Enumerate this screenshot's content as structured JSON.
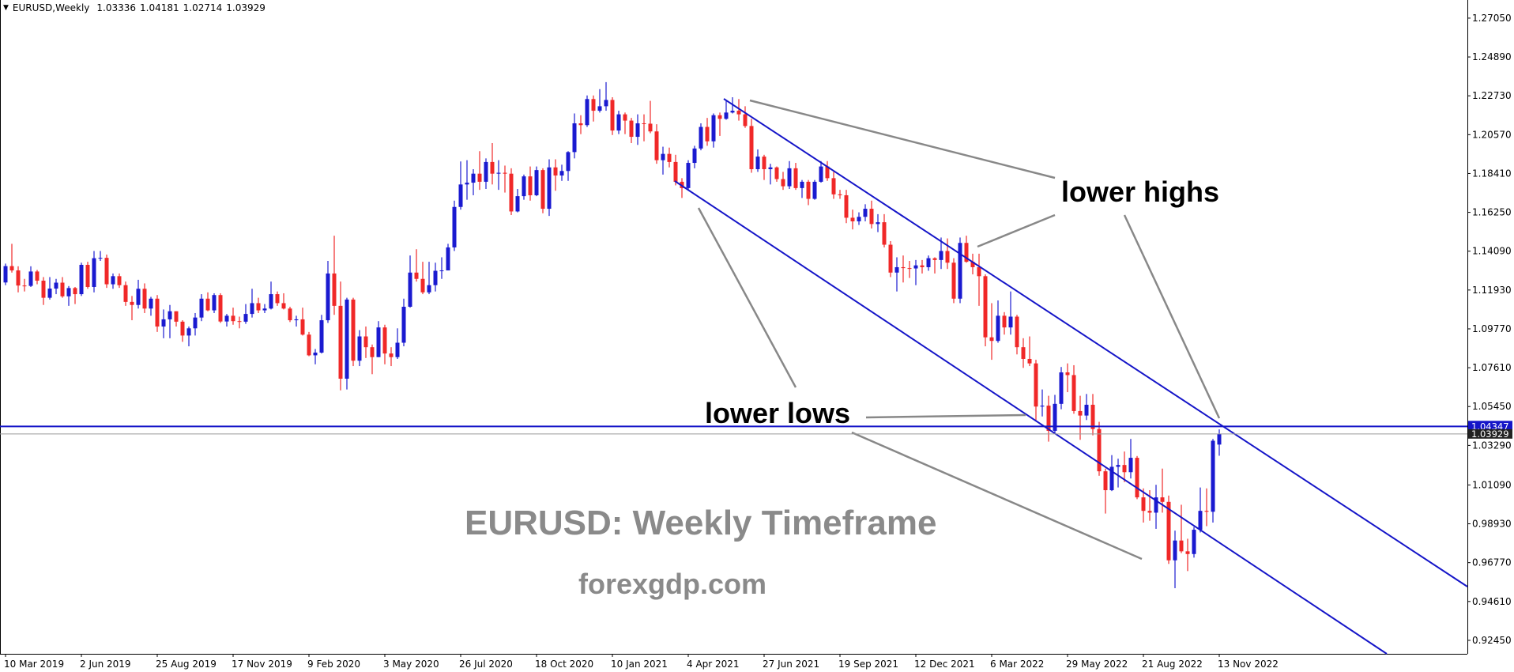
{
  "chart_data": {
    "type": "candlestick",
    "symbol": "EURUSD,Weekly",
    "up_color": "#1a1ad0",
    "down_color": "#f02828",
    "level": 1.04347,
    "level_color": "#1515c8",
    "annotations": [
      "lower highs",
      "lower lows",
      "EURUSD: Weekly Timeframe",
      "forexgdp.com"
    ],
    "ylim": [
      0.917,
      1.2797
    ],
    "yticks": [
      {
        "value": 1.2705,
        "label": "1.27050"
      },
      {
        "value": 1.2489,
        "label": "1.24890"
      },
      {
        "value": 1.2273,
        "label": "1.22730"
      },
      {
        "value": 1.2057,
        "label": "1.20570"
      },
      {
        "value": 1.1841,
        "label": "1.18410"
      },
      {
        "value": 1.1625,
        "label": "1.16250"
      },
      {
        "value": 1.1409,
        "label": "1.14090"
      },
      {
        "value": 1.1193,
        "label": "1.11930"
      },
      {
        "value": 1.0977,
        "label": "1.09770"
      },
      {
        "value": 1.0761,
        "label": "1.07610"
      },
      {
        "value": 1.0545,
        "label": "1.05450"
      },
      {
        "value": 1.0329,
        "label": "1.03290"
      },
      {
        "value": 1.0109,
        "label": "1.01090"
      },
      {
        "value": 0.9893,
        "label": "0.98930"
      },
      {
        "value": 0.9677,
        "label": "0.96770"
      },
      {
        "value": 0.9461,
        "label": "0.94610"
      },
      {
        "value": 0.9245,
        "label": "0.92450"
      }
    ],
    "categories": [
      "10 Mar 2019",
      null,
      null,
      null,
      null,
      null,
      null,
      null,
      null,
      null,
      null,
      null,
      "2 Jun 2019",
      null,
      null,
      null,
      null,
      null,
      null,
      null,
      null,
      null,
      null,
      null,
      "25 Aug 2019",
      null,
      null,
      null,
      null,
      null,
      null,
      null,
      null,
      null,
      null,
      null,
      "17 Nov 2019",
      null,
      null,
      null,
      null,
      null,
      null,
      null,
      null,
      null,
      null,
      null,
      "9 Feb 2020",
      null,
      null,
      null,
      null,
      null,
      null,
      null,
      null,
      null,
      null,
      null,
      "3 May 2020",
      null,
      null,
      null,
      null,
      null,
      null,
      null,
      null,
      null,
      null,
      null,
      "26 Jul 2020",
      null,
      null,
      null,
      null,
      null,
      null,
      null,
      null,
      null,
      null,
      null,
      "18 Oct 2020",
      null,
      null,
      null,
      null,
      null,
      null,
      null,
      null,
      null,
      null,
      null,
      "10 Jan 2021",
      null,
      null,
      null,
      null,
      null,
      null,
      null,
      null,
      null,
      null,
      null,
      "4 Apr 2021",
      null,
      null,
      null,
      null,
      null,
      null,
      null,
      null,
      null,
      null,
      null,
      "27 Jun 2021",
      null,
      null,
      null,
      null,
      null,
      null,
      null,
      null,
      null,
      null,
      null,
      "19 Sep 2021",
      null,
      null,
      null,
      null,
      null,
      null,
      null,
      null,
      null,
      null,
      null,
      "12 Dec 2021",
      null,
      null,
      null,
      null,
      null,
      null,
      null,
      null,
      null,
      null,
      null,
      "6 Mar 2022",
      null,
      null,
      null,
      null,
      null,
      null,
      null,
      null,
      null,
      null,
      null,
      "29 May 2022",
      null,
      null,
      null,
      null,
      null,
      null,
      null,
      null,
      null,
      null,
      null,
      "21 Aug 2022",
      null,
      null,
      null,
      null,
      null,
      null,
      null,
      null,
      null,
      null,
      null,
      "13 Nov 2022"
    ],
    "candles": [
      [
        1.1235,
        1.134,
        1.122,
        1.1326
      ],
      [
        1.1326,
        1.145,
        1.129,
        1.1302
      ],
      [
        1.1302,
        1.1325,
        1.118,
        1.1218
      ],
      [
        1.1218,
        1.1255,
        1.1185,
        1.1216
      ],
      [
        1.1216,
        1.1325,
        1.121,
        1.1296
      ],
      [
        1.1296,
        1.1305,
        1.1225,
        1.1245
      ],
      [
        1.1245,
        1.1265,
        1.111,
        1.115
      ],
      [
        1.115,
        1.1265,
        1.114,
        1.1201
      ],
      [
        1.1201,
        1.1255,
        1.117,
        1.1234
      ],
      [
        1.1234,
        1.1265,
        1.115,
        1.1158
      ],
      [
        1.1158,
        1.1215,
        1.1105,
        1.1204
      ],
      [
        1.1204,
        1.121,
        1.1115,
        1.117
      ],
      [
        1.117,
        1.1345,
        1.116,
        1.1333
      ],
      [
        1.1333,
        1.135,
        1.12,
        1.121
      ],
      [
        1.121,
        1.141,
        1.118,
        1.137
      ],
      [
        1.137,
        1.141,
        1.1355,
        1.1372
      ],
      [
        1.1372,
        1.139,
        1.1205,
        1.1225
      ],
      [
        1.1225,
        1.1285,
        1.12,
        1.127
      ],
      [
        1.127,
        1.1285,
        1.1205,
        1.122
      ],
      [
        1.122,
        1.124,
        1.1105,
        1.1127
      ],
      [
        1.1127,
        1.116,
        1.1025,
        1.111
      ],
      [
        1.111,
        1.125,
        1.109,
        1.12
      ],
      [
        1.12,
        1.123,
        1.1065,
        1.109
      ],
      [
        1.109,
        1.1155,
        1.105,
        1.1145
      ],
      [
        1.1145,
        1.1165,
        1.096,
        1.099
      ],
      [
        1.099,
        1.1085,
        1.0925,
        1.103
      ],
      [
        1.103,
        1.111,
        1.0925,
        1.1075
      ],
      [
        1.1075,
        1.1075,
        1.099,
        1.1017
      ],
      [
        1.1017,
        1.1025,
        1.0905,
        1.094
      ],
      [
        1.094,
        1.099,
        1.088,
        1.098
      ],
      [
        1.098,
        1.1065,
        1.094,
        1.104
      ],
      [
        1.104,
        1.117,
        1.102,
        1.1145
      ],
      [
        1.1145,
        1.118,
        1.1075,
        1.108
      ],
      [
        1.108,
        1.1175,
        1.1065,
        1.1165
      ],
      [
        1.1165,
        1.1175,
        1.101,
        1.1018
      ],
      [
        1.1018,
        1.106,
        1.099,
        1.105
      ],
      [
        1.105,
        1.1095,
        1.1,
        1.102
      ],
      [
        1.102,
        1.1045,
        1.098,
        1.1017
      ],
      [
        1.1017,
        1.1115,
        1.1005,
        1.106
      ],
      [
        1.106,
        1.12,
        1.104,
        1.112
      ],
      [
        1.112,
        1.115,
        1.1065,
        1.108
      ],
      [
        1.108,
        1.1115,
        1.1065,
        1.109
      ],
      [
        1.109,
        1.124,
        1.1085,
        1.117
      ],
      [
        1.117,
        1.1185,
        1.1105,
        1.112
      ],
      [
        1.112,
        1.1175,
        1.1085,
        1.109
      ],
      [
        1.109,
        1.11,
        1.1015,
        1.1025
      ],
      [
        1.1025,
        1.105,
        1.099,
        1.103
      ],
      [
        1.103,
        1.1095,
        1.094,
        1.0945
      ],
      [
        1.0945,
        1.096,
        1.0825,
        1.083
      ],
      [
        1.083,
        1.0865,
        1.078,
        1.0845
      ],
      [
        1.0845,
        1.1055,
        1.084,
        1.1025
      ],
      [
        1.1025,
        1.1355,
        1.101,
        1.1285
      ],
      [
        1.1285,
        1.1495,
        1.1055,
        1.1105
      ],
      [
        1.1105,
        1.124,
        1.0635,
        1.07
      ],
      [
        1.07,
        1.115,
        1.064,
        1.114
      ],
      [
        1.114,
        1.115,
        1.077,
        1.08
      ],
      [
        1.08,
        1.097,
        1.077,
        1.0935
      ],
      [
        1.0935,
        1.099,
        1.0815,
        1.0875
      ],
      [
        1.0875,
        1.089,
        1.0725,
        1.082
      ],
      [
        1.082,
        1.102,
        1.082,
        1.0985
      ],
      [
        1.0985,
        1.1,
        1.078,
        1.084
      ],
      [
        1.084,
        1.0875,
        1.077,
        1.082
      ],
      [
        1.082,
        1.098,
        1.081,
        1.09
      ],
      [
        1.09,
        1.1145,
        1.088,
        1.11
      ],
      [
        1.11,
        1.1385,
        1.1095,
        1.129
      ],
      [
        1.129,
        1.142,
        1.124,
        1.1255
      ],
      [
        1.1255,
        1.135,
        1.117,
        1.118
      ],
      [
        1.118,
        1.135,
        1.117,
        1.122
      ],
      [
        1.122,
        1.1345,
        1.1185,
        1.13
      ],
      [
        1.13,
        1.1375,
        1.1255,
        1.1302
      ],
      [
        1.1302,
        1.145,
        1.132,
        1.143
      ],
      [
        1.143,
        1.169,
        1.141,
        1.1655
      ],
      [
        1.1655,
        1.1908,
        1.164,
        1.178
      ],
      [
        1.178,
        1.1915,
        1.1695,
        1.179
      ],
      [
        1.179,
        1.1865,
        1.172,
        1.184
      ],
      [
        1.184,
        1.1965,
        1.175,
        1.1795
      ],
      [
        1.1795,
        1.1925,
        1.1755,
        1.1905
      ],
      [
        1.1905,
        1.201,
        1.178,
        1.184
      ],
      [
        1.184,
        1.1915,
        1.175,
        1.1845
      ],
      [
        1.1845,
        1.1885,
        1.1735,
        1.184
      ],
      [
        1.184,
        1.187,
        1.161,
        1.163
      ],
      [
        1.163,
        1.1755,
        1.1625,
        1.1715
      ],
      [
        1.1715,
        1.1835,
        1.1695,
        1.1825
      ],
      [
        1.1825,
        1.188,
        1.169,
        1.172
      ],
      [
        1.172,
        1.188,
        1.1715,
        1.186
      ],
      [
        1.186,
        1.187,
        1.162,
        1.1645
      ],
      [
        1.1645,
        1.192,
        1.1605,
        1.1875
      ],
      [
        1.1875,
        1.192,
        1.1745,
        1.183
      ],
      [
        1.183,
        1.189,
        1.18,
        1.1855
      ],
      [
        1.1855,
        1.1965,
        1.18,
        1.196
      ],
      [
        1.196,
        1.2175,
        1.1925,
        1.212
      ],
      [
        1.212,
        1.2165,
        1.206,
        1.211
      ],
      [
        1.211,
        1.2275,
        1.21,
        1.2255
      ],
      [
        1.2255,
        1.2275,
        1.213,
        1.219
      ],
      [
        1.219,
        1.231,
        1.218,
        1.2215
      ],
      [
        1.2215,
        1.2349,
        1.219,
        1.225
      ],
      [
        1.225,
        1.2265,
        1.2055,
        1.208
      ],
      [
        1.208,
        1.219,
        1.206,
        1.217
      ],
      [
        1.217,
        1.218,
        1.206,
        1.2135
      ],
      [
        1.2135,
        1.215,
        1.201,
        1.2045
      ],
      [
        1.2045,
        1.217,
        1.2,
        1.212
      ],
      [
        1.212,
        1.217,
        1.202,
        1.2118
      ],
      [
        1.2118,
        1.2245,
        1.2065,
        1.2075
      ],
      [
        1.2075,
        1.2115,
        1.1895,
        1.1915
      ],
      [
        1.1915,
        1.199,
        1.1835,
        1.195
      ],
      [
        1.195,
        1.1985,
        1.1875,
        1.1905
      ],
      [
        1.1905,
        1.1945,
        1.1775,
        1.1795
      ],
      [
        1.1795,
        1.1815,
        1.1705,
        1.176
      ],
      [
        1.176,
        1.1915,
        1.175,
        1.19
      ],
      [
        1.19,
        1.1995,
        1.187,
        1.198
      ],
      [
        1.198,
        1.212,
        1.197,
        1.21
      ],
      [
        1.21,
        1.215,
        1.1995,
        1.202
      ],
      [
        1.202,
        1.2175,
        1.1985,
        1.2165
      ],
      [
        1.2165,
        1.218,
        1.205,
        1.2145
      ],
      [
        1.2145,
        1.2245,
        1.214,
        1.218
      ],
      [
        1.218,
        1.2265,
        1.2175,
        1.219
      ],
      [
        1.219,
        1.2255,
        1.2135,
        1.217
      ],
      [
        1.217,
        1.2215,
        1.2095,
        1.2105
      ],
      [
        1.2105,
        1.2145,
        1.1845,
        1.1865
      ],
      [
        1.1865,
        1.1975,
        1.185,
        1.1935
      ],
      [
        1.1935,
        1.1945,
        1.1805,
        1.1865
      ],
      [
        1.1865,
        1.1895,
        1.178,
        1.1875
      ],
      [
        1.1875,
        1.188,
        1.1795,
        1.181
      ],
      [
        1.181,
        1.185,
        1.175,
        1.177
      ],
      [
        1.177,
        1.191,
        1.1755,
        1.187
      ],
      [
        1.187,
        1.19,
        1.175,
        1.176
      ],
      [
        1.176,
        1.1805,
        1.1705,
        1.1795
      ],
      [
        1.1795,
        1.1805,
        1.1665,
        1.17
      ],
      [
        1.17,
        1.1805,
        1.1695,
        1.1795
      ],
      [
        1.1795,
        1.191,
        1.179,
        1.188
      ],
      [
        1.188,
        1.191,
        1.18,
        1.1815
      ],
      [
        1.1815,
        1.185,
        1.17,
        1.1725
      ],
      [
        1.1725,
        1.175,
        1.17,
        1.172
      ],
      [
        1.172,
        1.175,
        1.1565,
        1.1595
      ],
      [
        1.1595,
        1.164,
        1.153,
        1.1575
      ],
      [
        1.1575,
        1.1625,
        1.1555,
        1.16
      ],
      [
        1.16,
        1.167,
        1.1575,
        1.1645
      ],
      [
        1.1645,
        1.169,
        1.1535,
        1.156
      ],
      [
        1.156,
        1.1615,
        1.1515,
        1.157
      ],
      [
        1.157,
        1.1615,
        1.143,
        1.1445
      ],
      [
        1.1445,
        1.1465,
        1.1265,
        1.129
      ],
      [
        1.129,
        1.1375,
        1.1185,
        1.132
      ],
      [
        1.132,
        1.1385,
        1.1235,
        1.1315
      ],
      [
        1.1315,
        1.1355,
        1.126,
        1.1313
      ],
      [
        1.1313,
        1.136,
        1.122,
        1.133
      ],
      [
        1.133,
        1.136,
        1.1285,
        1.132
      ],
      [
        1.132,
        1.1385,
        1.13,
        1.137
      ],
      [
        1.137,
        1.1375,
        1.1285,
        1.136
      ],
      [
        1.136,
        1.1485,
        1.131,
        1.141
      ],
      [
        1.141,
        1.148,
        1.131,
        1.1345
      ],
      [
        1.1345,
        1.137,
        1.112,
        1.1145
      ],
      [
        1.1145,
        1.1485,
        1.112,
        1.1455
      ],
      [
        1.1455,
        1.1495,
        1.1345,
        1.135
      ],
      [
        1.135,
        1.1395,
        1.128,
        1.132
      ],
      [
        1.132,
        1.1395,
        1.1105,
        1.127
      ],
      [
        1.127,
        1.128,
        1.088,
        1.093
      ],
      [
        1.093,
        1.112,
        1.0805,
        1.091
      ],
      [
        1.091,
        1.1135,
        1.09,
        1.105
      ],
      [
        1.105,
        1.107,
        1.0945,
        1.0985
      ],
      [
        1.0985,
        1.1185,
        1.0945,
        1.1045
      ],
      [
        1.1045,
        1.1055,
        1.0835,
        1.0875
      ],
      [
        1.0875,
        1.0925,
        1.076,
        1.081
      ],
      [
        1.081,
        1.0935,
        1.077,
        1.0785
      ],
      [
        1.0785,
        1.0805,
        1.047,
        1.0545
      ],
      [
        1.0545,
        1.064,
        1.049,
        1.055
      ],
      [
        1.055,
        1.0605,
        1.035,
        1.041
      ],
      [
        1.041,
        1.061,
        1.04,
        1.056
      ],
      [
        1.056,
        1.0765,
        1.053,
        1.0735
      ],
      [
        1.0735,
        1.0785,
        1.0625,
        1.072
      ],
      [
        1.072,
        1.0775,
        1.0505,
        1.052
      ],
      [
        1.052,
        1.0605,
        1.036,
        1.0495
      ],
      [
        1.0495,
        1.0615,
        1.047,
        1.0555
      ],
      [
        1.0555,
        1.0615,
        1.0385,
        1.042
      ],
      [
        1.042,
        1.046,
        1.016,
        1.0185
      ],
      [
        1.0185,
        1.02,
        0.995,
        1.008
      ],
      [
        1.008,
        1.0275,
        1.0075,
        1.021
      ],
      [
        1.021,
        1.0255,
        1.0095,
        1.022
      ],
      [
        1.022,
        1.0295,
        1.0125,
        1.018
      ],
      [
        1.018,
        1.0365,
        1.0145,
        1.026
      ],
      [
        1.026,
        1.027,
        1.003,
        1.004
      ],
      [
        1.004,
        1.009,
        0.99,
        0.9965
      ],
      [
        0.9965,
        1.008,
        0.991,
        0.9955
      ],
      [
        0.9955,
        1.011,
        0.9865,
        1.004
      ],
      [
        1.004,
        1.02,
        0.9955,
        1.0015
      ],
      [
        1.0015,
        1.005,
        0.967,
        0.969
      ],
      [
        0.969,
        0.9855,
        0.9535,
        0.98
      ],
      [
        0.98,
        0.9999,
        0.973,
        0.974
      ],
      [
        0.974,
        0.981,
        0.963,
        0.9725
      ],
      [
        0.9725,
        0.9875,
        0.9705,
        0.986
      ],
      [
        0.986,
        1.0095,
        0.9845,
        0.9965
      ],
      [
        0.9965,
        1.009,
        0.988,
        0.996
      ],
      [
        0.996,
        1.0365,
        0.99,
        1.0355
      ],
      [
        1.03336,
        1.04181,
        1.02714,
        1.03929
      ]
    ]
  }
}
